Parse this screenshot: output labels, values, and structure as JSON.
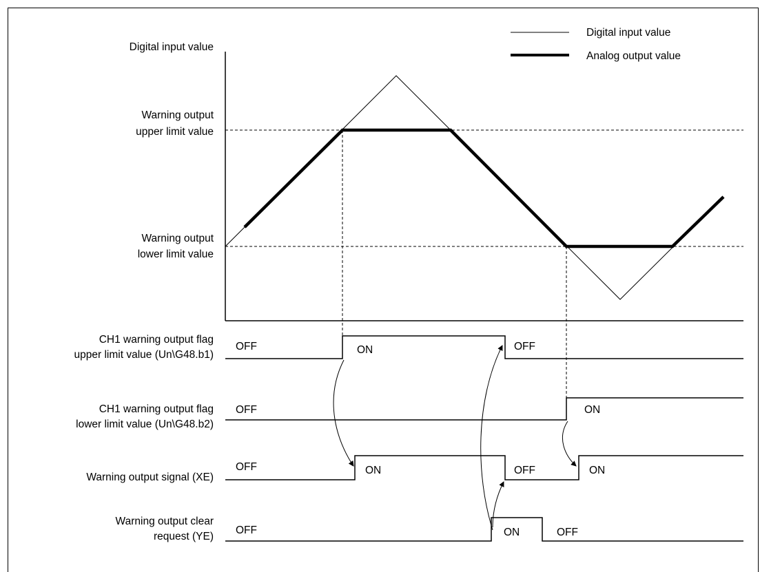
{
  "legend": {
    "digital_input": "Digital input value",
    "analog_output": "Analog output value"
  },
  "y_axis_title": "Digital input value",
  "levels": {
    "upper_line1": "Warning output",
    "upper_line2": "upper limit value",
    "lower_line1": "Warning output",
    "lower_line2": "lower limit value"
  },
  "signals": {
    "upper_flag": {
      "line1": "CH1 warning output flag",
      "line2": "upper limit value (Un\\G48.b1)",
      "states": [
        "OFF",
        "ON",
        "OFF"
      ]
    },
    "lower_flag": {
      "line1": "CH1 warning output flag",
      "line2": "lower limit value (Un\\G48.b2)",
      "states": [
        "OFF",
        "ON"
      ]
    },
    "output_signal": {
      "line1": "Warning output signal (XE)",
      "states": [
        "OFF",
        "ON",
        "OFF",
        "ON"
      ]
    },
    "clear_request": {
      "line1": "Warning output clear",
      "line2": "request (YE)",
      "states": [
        "OFF",
        "ON",
        "OFF"
      ]
    }
  },
  "colors": {
    "line": "#000000",
    "background": "#ffffff"
  }
}
